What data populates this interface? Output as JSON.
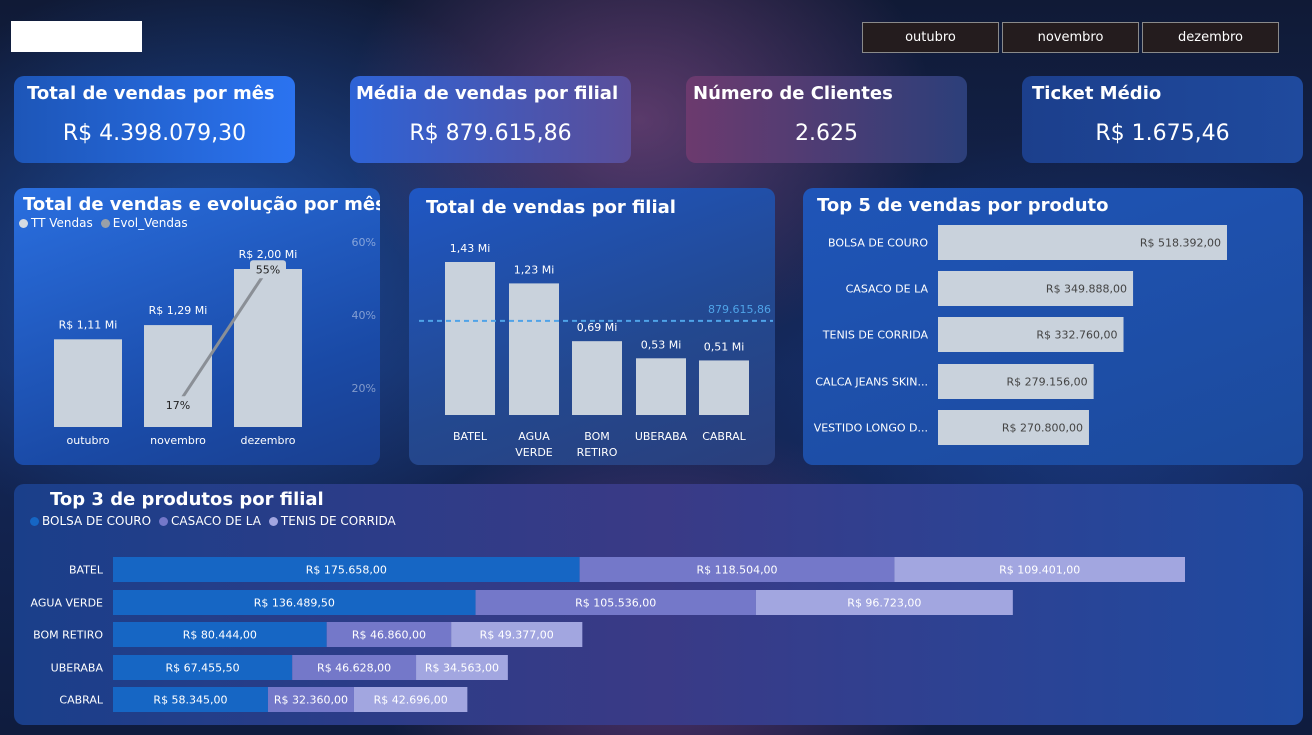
{
  "header": {
    "slicer": [
      "outubro",
      "novembro",
      "dezembro"
    ]
  },
  "kpis": [
    {
      "title": "Total de vendas por mês",
      "value": "R$ 4.398.079,30"
    },
    {
      "title": "Média de vendas por filial",
      "value": "R$ 879.615,86"
    },
    {
      "title": "Número de Clientes",
      "value": "2.625"
    },
    {
      "title": "Ticket Médio",
      "value": "R$ 1.675,46"
    }
  ],
  "colors": {
    "bar_gray": "#c9d2dc",
    "line_gray": "#8a8f96",
    "avg_line": "#4fa3e8",
    "bolsa": "#1666c4",
    "casaco": "#7478c9",
    "tenis": "#a2a6e0"
  },
  "chart_data": [
    {
      "type": "bar",
      "title": "Total de vendas e evolução por mês",
      "legend": [
        {
          "label": "TT Vendas",
          "color": "#d6dbe2"
        },
        {
          "label": "Evol_Vendas",
          "color": "#9aa0a8"
        }
      ],
      "categories": [
        "outubro",
        "novembro",
        "dezembro"
      ],
      "series": [
        {
          "name": "TT Vendas",
          "values": [
            1.11,
            1.29,
            2.0
          ],
          "labels": [
            "R$ 1,11 Mi",
            "R$ 1,29 Mi",
            "R$ 2,00 Mi"
          ]
        },
        {
          "name": "Evol_Vendas",
          "type": "line",
          "values": [
            null,
            17,
            55
          ],
          "labels": [
            "",
            "17%",
            "55%"
          ]
        }
      ],
      "ylim": [
        0,
        2.0
      ],
      "y2_ticks": [
        "20%",
        "40%",
        "60%"
      ]
    },
    {
      "type": "bar",
      "title": "Total de vendas por filial",
      "categories": [
        "BATEL",
        "AGUA VERDE",
        "BOM RETIRO",
        "UBERABA",
        "CABRAL"
      ],
      "values": [
        1.43,
        1.23,
        0.69,
        0.53,
        0.51
      ],
      "labels": [
        "1,43 Mi",
        "1,23 Mi",
        "0,69 Mi",
        "0,53 Mi",
        "0,51 Mi"
      ],
      "average": 0.879615,
      "average_label": "879.615,86",
      "ylim": [
        0,
        1.43
      ]
    },
    {
      "type": "bar",
      "orientation": "horizontal",
      "title": "Top 5 de vendas por produto",
      "categories": [
        "BOLSA DE COURO",
        "CASACO DE LA",
        "TENIS DE CORRIDA",
        "CALCA JEANS SKIN...",
        "VESTIDO LONGO D..."
      ],
      "values": [
        518392,
        349888,
        332760,
        279156,
        270800
      ],
      "labels": [
        "R$ 518.392,00",
        "R$ 349.888,00",
        "R$ 332.760,00",
        "R$ 279.156,00",
        "R$ 270.800,00"
      ],
      "xlim": [
        0,
        518392
      ]
    },
    {
      "type": "bar",
      "orientation": "horizontal",
      "stacked": true,
      "title": "Top 3 de produtos por filial",
      "categories": [
        "BATEL",
        "AGUA VERDE",
        "BOM RETIRO",
        "UBERABA",
        "CABRAL"
      ],
      "series": [
        {
          "name": "BOLSA DE COURO",
          "color": "#1666c4",
          "values": [
            175658,
            136489.5,
            80444,
            67455.5,
            58345
          ],
          "labels": [
            "R$ 175.658,00",
            "R$ 136.489,50",
            "R$ 80.444,00",
            "R$ 67.455,50",
            "R$ 58.345,00"
          ]
        },
        {
          "name": "CASACO DE LA",
          "color": "#7478c9",
          "values": [
            118504,
            105536,
            46860,
            46628,
            32360
          ],
          "labels": [
            "R$ 118.504,00",
            "R$ 105.536,00",
            "R$ 46.860,00",
            "R$ 46.628,00",
            "R$ 32.360,00"
          ]
        },
        {
          "name": "TENIS DE CORRIDA",
          "color": "#a2a6e0",
          "values": [
            109401,
            96723,
            49377,
            34563,
            42696
          ],
          "labels": [
            "R$ 109.401,00",
            "R$ 96.723,00",
            "R$ 49.377,00",
            "R$ 34.563,00",
            "R$ 42.696,00"
          ]
        }
      ],
      "legend_position": "top-left"
    }
  ]
}
